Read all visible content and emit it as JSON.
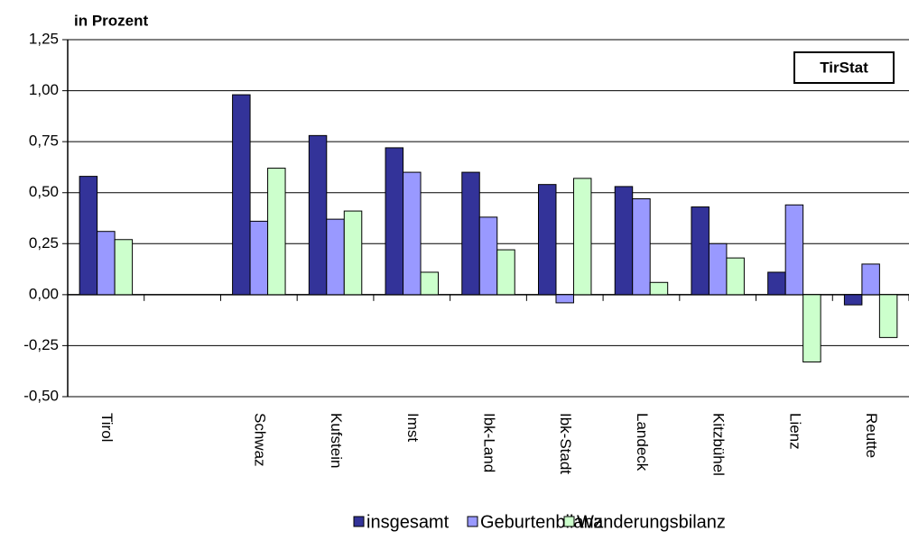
{
  "chart_data": {
    "type": "bar",
    "y_axis_label": "in Prozent",
    "annotation": "TirStat",
    "categories": [
      "Tirol",
      null,
      "Schwaz",
      "Kufstein",
      "Imst",
      "Ibk-Land",
      "Ibk-Stadt",
      "Landeck",
      "Kitzbühel",
      "Lienz",
      "Reutte"
    ],
    "series": [
      {
        "name": "insgesamt",
        "color": "#333399",
        "values": [
          0.58,
          null,
          0.98,
          0.78,
          0.72,
          0.6,
          0.54,
          0.53,
          0.43,
          0.11,
          -0.05
        ]
      },
      {
        "name": "Geburtenbilanz",
        "color": "#9999ff",
        "values": [
          0.31,
          null,
          0.36,
          0.37,
          0.6,
          0.38,
          -0.04,
          0.47,
          0.25,
          0.44,
          0.15
        ]
      },
      {
        "name": "Wanderungsbilanz",
        "color": "#ccffcc",
        "values": [
          0.27,
          null,
          0.62,
          0.41,
          0.11,
          0.22,
          0.57,
          0.06,
          0.18,
          -0.33,
          -0.21
        ]
      }
    ],
    "ylim": [
      -0.5,
      1.25
    ],
    "yticks": [
      {
        "value": -0.5,
        "label": "-0,50"
      },
      {
        "value": -0.25,
        "label": "-0,25"
      },
      {
        "value": 0,
        "label": "0,00"
      },
      {
        "value": 0.25,
        "label": "0,25"
      },
      {
        "value": 0.5,
        "label": "0,50"
      },
      {
        "value": 0.75,
        "label": "0,75"
      },
      {
        "value": 1,
        "label": "1,00"
      },
      {
        "value": 1.25,
        "label": "1,25"
      }
    ],
    "grid": true,
    "legend": "bottom"
  }
}
